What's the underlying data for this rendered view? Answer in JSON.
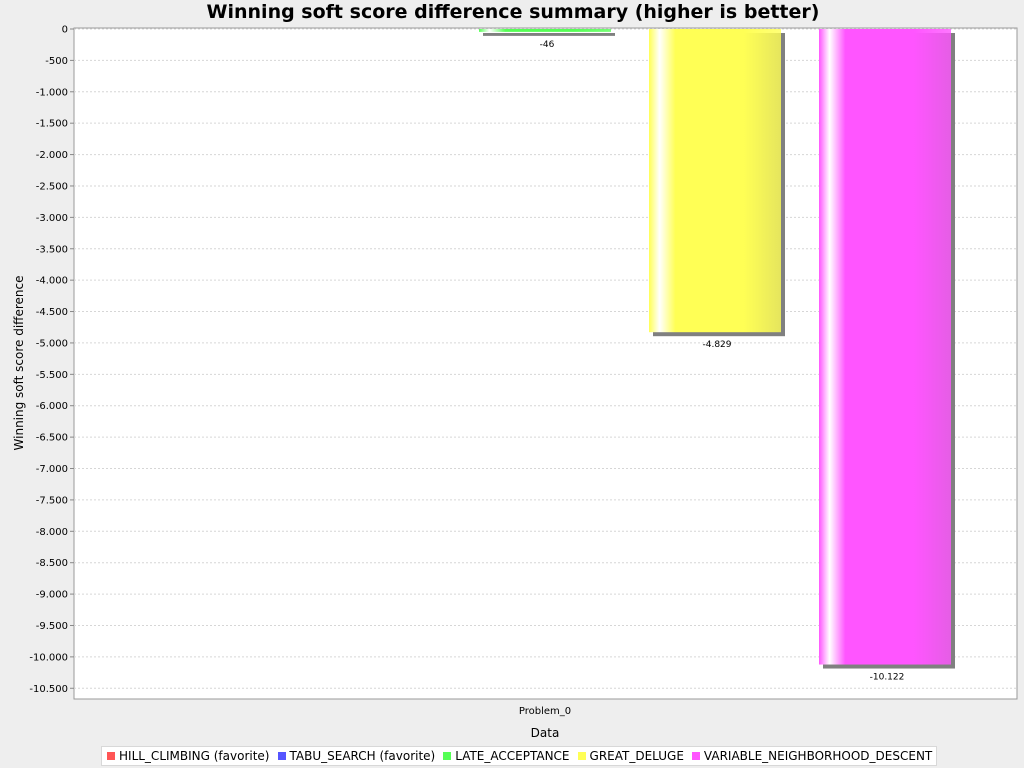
{
  "chart_data": {
    "type": "bar",
    "title": "Winning soft score difference summary (higher is better)",
    "xlabel": "Data",
    "ylabel": "Winning soft score difference",
    "categories": [
      "Problem_0"
    ],
    "series": [
      {
        "name": "HILL_CLIMBING (favorite)",
        "color": "#ff5555",
        "values": [
          0
        ],
        "label": ""
      },
      {
        "name": "TABU_SEARCH (favorite)",
        "color": "#5555ff",
        "values": [
          0
        ],
        "label": ""
      },
      {
        "name": "LATE_ACCEPTANCE",
        "color": "#55ff55",
        "values": [
          -46
        ],
        "label": "-46"
      },
      {
        "name": "GREAT_DELUGE",
        "color": "#ffff55",
        "values": [
          -4829
        ],
        "label": "-4.829"
      },
      {
        "name": "VARIABLE_NEIGHBORHOOD_DESCENT",
        "color": "#ff55ff",
        "values": [
          -10122
        ],
        "label": "-10.122"
      }
    ],
    "ylim": [
      -10655,
      0
    ],
    "yticks": [
      0,
      -500,
      -1000,
      -1500,
      -2000,
      -2500,
      -3000,
      -3500,
      -4000,
      -4500,
      -5000,
      -5500,
      -6000,
      -6500,
      -7000,
      -7500,
      -8000,
      -8500,
      -9000,
      -9500,
      -10000,
      -10500
    ],
    "ytick_labels": [
      "0",
      "-500",
      "-1.000",
      "-1.500",
      "-2.000",
      "-2.500",
      "-3.000",
      "-3.500",
      "-4.000",
      "-4.500",
      "-5.000",
      "-5.500",
      "-6.000",
      "-6.500",
      "-7.000",
      "-7.500",
      "-8.000",
      "-8.500",
      "-9.000",
      "-9.500",
      "-10.000",
      "-10.500"
    ],
    "grid": true,
    "legend_position": "bottom"
  }
}
